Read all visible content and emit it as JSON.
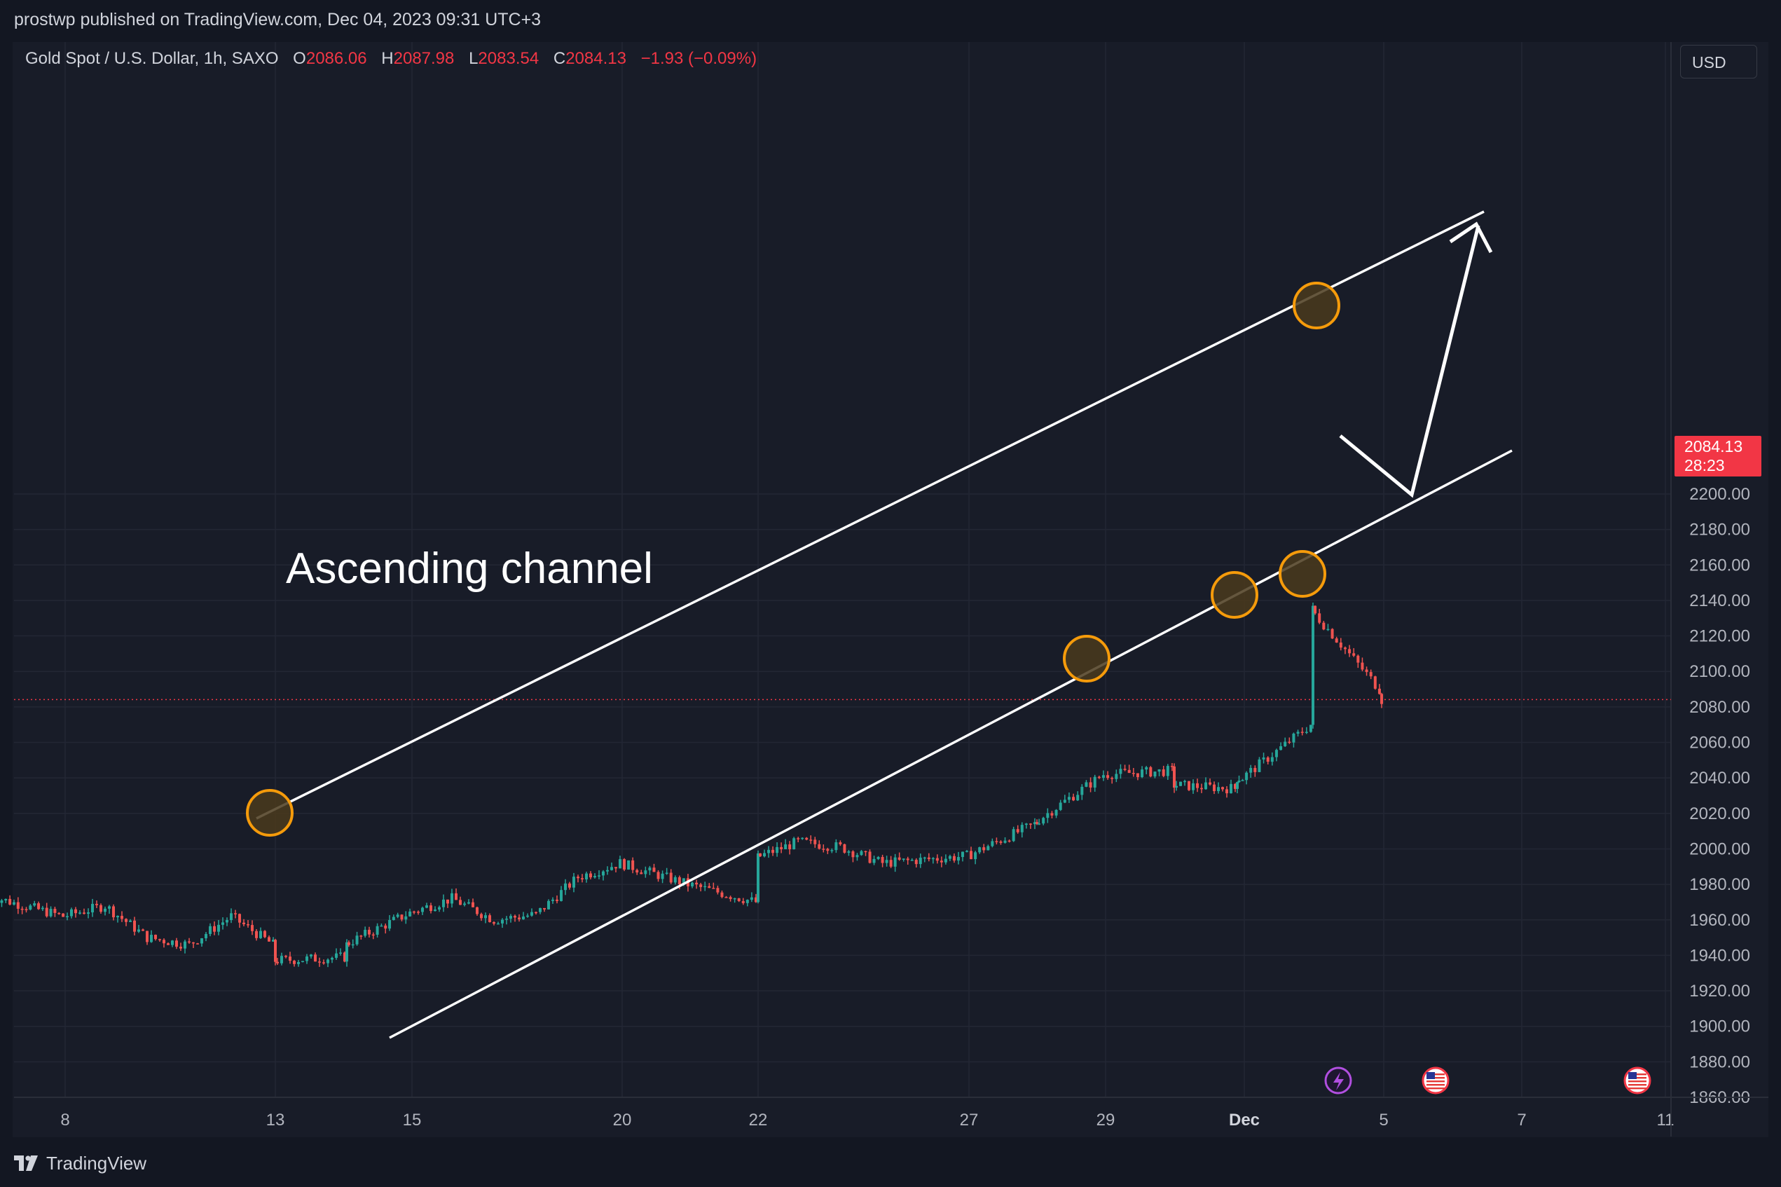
{
  "header": {
    "published_by": "prostwp published on TradingView.com, Dec 04, 2023 09:31 UTC+3"
  },
  "legend": {
    "symbol": "Gold Spot / U.S. Dollar, 1h, SAXO",
    "open_label": "O",
    "open": "2086.06",
    "high_label": "H",
    "high": "2087.98",
    "low_label": "L",
    "low": "2083.54",
    "close_label": "C",
    "close": "2084.13",
    "change": "−1.93 (−0.09%)"
  },
  "currency_button": "USD",
  "price_label": {
    "price": "2084.13",
    "countdown": "28:23"
  },
  "watermark": "TradingView",
  "colors": {
    "background": "#131722",
    "up": "#26a69a",
    "down": "#ef5350",
    "last_price": "#f23645",
    "annotation": "#ffffff",
    "circle_stroke": "#f59b0b",
    "circle_fill": "#4a3a1c"
  },
  "chart_data": {
    "type": "candlestick",
    "title": "",
    "xlabel": "",
    "ylabel": "",
    "ylim": [
      1860,
      2210
    ],
    "grid": true,
    "y_ticks": [
      "2200.00",
      "2180.00",
      "2160.00",
      "2140.00",
      "2120.00",
      "2100.00",
      "2080.00",
      "2060.00",
      "2040.00",
      "2020.00",
      "2000.00",
      "1980.00",
      "1960.00",
      "1940.00",
      "1920.00",
      "1900.00",
      "1880.00",
      "1860.00"
    ],
    "x_ticks": [
      "8",
      "13",
      "15",
      "20",
      "22",
      "27",
      "29",
      "Dec",
      "5",
      "7",
      "11"
    ],
    "last_price": 2084.13,
    "close_path": [
      {
        "x": "Nov 07",
        "y": 1974
      },
      {
        "x": "Nov 08",
        "y": 1962
      },
      {
        "x": "Nov 09",
        "y": 1968
      },
      {
        "x": "Nov 10",
        "y": 1950
      },
      {
        "x": "Nov 11",
        "y": 1946
      },
      {
        "x": "Nov 12",
        "y": 1962
      },
      {
        "x": "Nov 13",
        "y": 1946
      },
      {
        "x": "Nov 13",
        "y": 1937
      },
      {
        "x": "Nov 14",
        "y": 1939
      },
      {
        "x": "Nov 14",
        "y": 1946
      },
      {
        "x": "Nov 15",
        "y": 1964
      },
      {
        "x": "Nov 16",
        "y": 1972
      },
      {
        "x": "Nov 17",
        "y": 1960
      },
      {
        "x": "Nov 18",
        "y": 1963
      },
      {
        "x": "Nov 19",
        "y": 1984
      },
      {
        "x": "Nov 20",
        "y": 1992
      },
      {
        "x": "Nov 21",
        "y": 1980
      },
      {
        "x": "Nov 22",
        "y": 1970
      },
      {
        "x": "Nov 22",
        "y": 1995
      },
      {
        "x": "Nov 23",
        "y": 2004
      },
      {
        "x": "Nov 24",
        "y": 2001
      },
      {
        "x": "Nov 25",
        "y": 1992
      },
      {
        "x": "Nov 26",
        "y": 1994
      },
      {
        "x": "Nov 27",
        "y": 1996
      },
      {
        "x": "Nov 28",
        "y": 2014
      },
      {
        "x": "Nov 28",
        "y": 2015
      },
      {
        "x": "Nov 29",
        "y": 2042
      },
      {
        "x": "Nov 30",
        "y": 2044
      },
      {
        "x": "Nov 30",
        "y": 2036
      },
      {
        "x": "Dec 01",
        "y": 2034
      },
      {
        "x": "Dec 01",
        "y": 2040
      },
      {
        "x": "Dec 02",
        "y": 2040
      },
      {
        "x": "Dec 03",
        "y": 2070
      },
      {
        "x": "Dec 03",
        "y": 2135
      },
      {
        "x": "Dec 04",
        "y": 2090
      },
      {
        "x": "Dec 04",
        "y": 2084
      }
    ],
    "annotations": {
      "label": "Ascending channel"
    }
  }
}
